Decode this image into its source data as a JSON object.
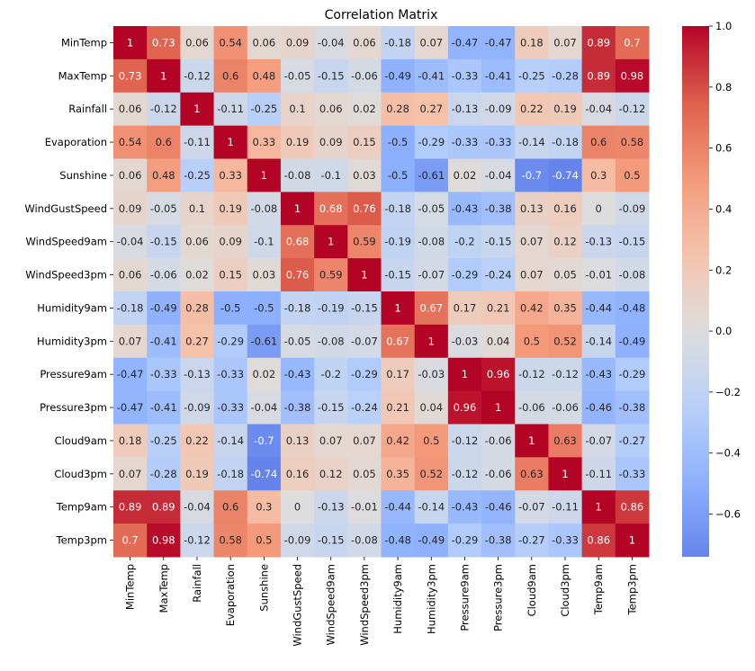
{
  "chart_data": {
    "type": "heatmap",
    "title": "Correlation Matrix",
    "xlabel": "",
    "ylabel": "",
    "labels": [
      "MinTemp",
      "MaxTemp",
      "Rainfall",
      "Evaporation",
      "Sunshine",
      "WindGustSpeed",
      "WindSpeed9am",
      "WindSpeed3pm",
      "Humidity9am",
      "Humidity3pm",
      "Pressure9am",
      "Pressure3pm",
      "Cloud9am",
      "Cloud3pm",
      "Temp9am",
      "Temp3pm"
    ],
    "matrix": [
      [
        1,
        0.73,
        0.06,
        0.54,
        0.06,
        0.09,
        -0.04,
        0.06,
        -0.18,
        0.07,
        -0.47,
        -0.47,
        0.18,
        0.07,
        0.89,
        0.7
      ],
      [
        0.73,
        1,
        -0.12,
        0.6,
        0.48,
        -0.05,
        -0.15,
        -0.06,
        -0.49,
        -0.41,
        -0.33,
        -0.41,
        -0.25,
        -0.28,
        0.89,
        0.98
      ],
      [
        0.06,
        -0.12,
        1,
        -0.11,
        -0.25,
        0.1,
        0.06,
        0.02,
        0.28,
        0.27,
        -0.13,
        -0.09,
        0.22,
        0.19,
        -0.04,
        -0.12
      ],
      [
        0.54,
        0.6,
        -0.11,
        1,
        0.33,
        0.19,
        0.09,
        0.15,
        -0.5,
        -0.29,
        -0.33,
        -0.33,
        -0.14,
        -0.18,
        0.6,
        0.58
      ],
      [
        0.06,
        0.48,
        -0.25,
        0.33,
        1,
        -0.08,
        -0.1,
        0.03,
        -0.5,
        -0.61,
        0.02,
        -0.04,
        -0.7,
        -0.74,
        0.3,
        0.5
      ],
      [
        0.09,
        -0.05,
        0.1,
        0.19,
        -0.08,
        1,
        0.68,
        0.76,
        -0.18,
        -0.05,
        -0.43,
        -0.38,
        0.13,
        0.16,
        0,
        -0.09
      ],
      [
        -0.04,
        -0.15,
        0.06,
        0.09,
        -0.1,
        0.68,
        1,
        0.59,
        -0.19,
        -0.08,
        -0.2,
        -0.15,
        0.07,
        0.12,
        -0.13,
        -0.15
      ],
      [
        0.06,
        -0.06,
        0.02,
        0.15,
        0.03,
        0.76,
        0.59,
        1,
        -0.15,
        -0.07,
        -0.29,
        -0.24,
        0.07,
        0.05,
        -0.01,
        -0.08
      ],
      [
        -0.18,
        -0.49,
        0.28,
        -0.5,
        -0.5,
        -0.18,
        -0.19,
        -0.15,
        1,
        0.67,
        0.17,
        0.21,
        0.42,
        0.35,
        -0.44,
        -0.48
      ],
      [
        0.07,
        -0.41,
        0.27,
        -0.29,
        -0.61,
        -0.05,
        -0.08,
        -0.07,
        0.67,
        1,
        -0.03,
        0.04,
        0.5,
        0.52,
        -0.14,
        -0.49
      ],
      [
        -0.47,
        -0.33,
        -0.13,
        -0.33,
        0.02,
        -0.43,
        -0.2,
        -0.29,
        0.17,
        -0.03,
        1,
        0.96,
        -0.12,
        -0.12,
        -0.43,
        -0.29
      ],
      [
        -0.47,
        -0.41,
        -0.09,
        -0.33,
        -0.04,
        -0.38,
        -0.15,
        -0.24,
        0.21,
        0.04,
        0.96,
        1,
        -0.06,
        -0.06,
        -0.46,
        -0.38
      ],
      [
        0.18,
        -0.25,
        0.22,
        -0.14,
        -0.7,
        0.13,
        0.07,
        0.07,
        0.42,
        0.5,
        -0.12,
        -0.06,
        1,
        0.63,
        -0.07,
        -0.27
      ],
      [
        0.07,
        -0.28,
        0.19,
        -0.18,
        -0.74,
        0.16,
        0.12,
        0.05,
        0.35,
        0.52,
        -0.12,
        -0.06,
        0.63,
        1,
        -0.11,
        -0.33
      ],
      [
        0.89,
        0.89,
        -0.04,
        0.6,
        0.3,
        0,
        -0.13,
        -0.01,
        -0.44,
        -0.14,
        -0.43,
        -0.46,
        -0.07,
        -0.11,
        1,
        0.86
      ],
      [
        0.7,
        0.98,
        -0.12,
        0.58,
        0.5,
        -0.09,
        -0.15,
        -0.08,
        -0.48,
        -0.49,
        -0.29,
        -0.38,
        -0.27,
        -0.33,
        0.86,
        1
      ]
    ],
    "colormap": "coolwarm",
    "color_range": [
      -0.74,
      1.0
    ],
    "colorbar": {
      "ticks": [
        1.0,
        0.8,
        0.6,
        0.4,
        0.2,
        0.0,
        -0.2,
        -0.4,
        -0.6
      ],
      "tick_labels": [
        "1.0",
        "0.8",
        "0.6",
        "0.4",
        "0.2",
        "0.0",
        "−0.2",
        "−0.4",
        "−0.6"
      ],
      "position": "right"
    },
    "annotations": true,
    "grid": false
  }
}
